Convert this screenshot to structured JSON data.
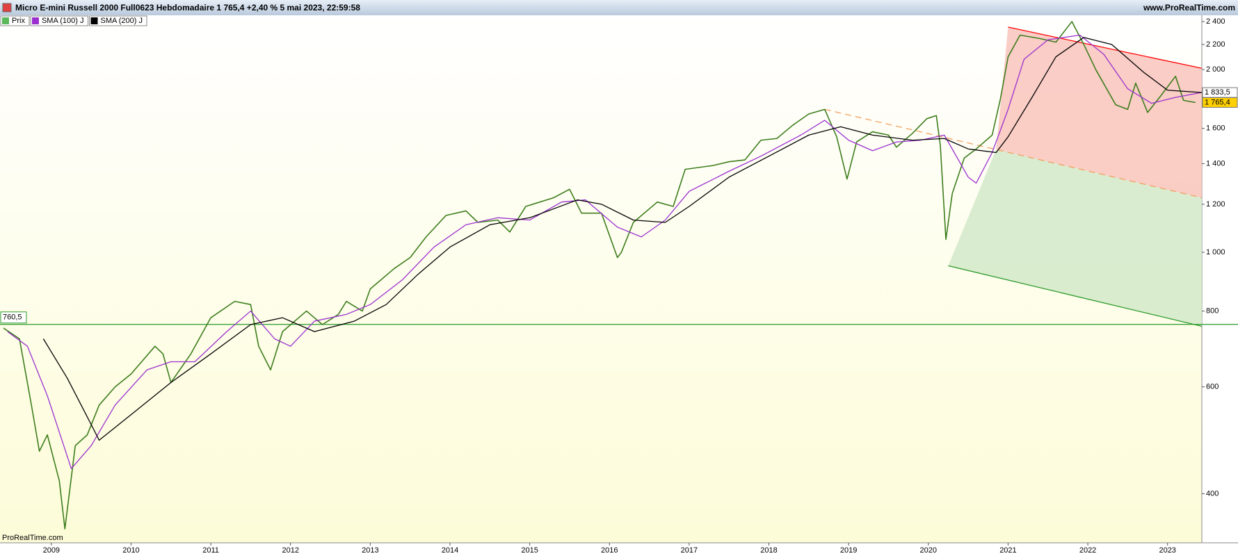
{
  "chart_data": {
    "type": "line",
    "title": "Micro E-mini Russell 2000 Full0623 Hebdomadaire 1 765,4 +2,40 % 5 mai 2023, 22:59:58",
    "source": "www.ProRealTime.com",
    "watermark": "ProRealTime.com",
    "log_scale": true,
    "grid": false,
    "legend": "top-left",
    "xlim": [
      2008.356,
      2023.43
    ],
    "xticks": [
      2009,
      2010,
      2011,
      2012,
      2013,
      2014,
      2015,
      2016,
      2017,
      2018,
      2019,
      2020,
      2021,
      2022,
      2023
    ],
    "ylim": [
      332,
      2458
    ],
    "yticks": [
      400,
      600,
      800,
      {
        "value": 1000,
        "label": "1 000"
      },
      {
        "value": 1200,
        "label": "1 200"
      },
      {
        "value": 1400,
        "label": "1 400"
      },
      {
        "value": 1600,
        "label": "1 600"
      },
      {
        "value": 2000,
        "label": "2 000"
      },
      {
        "value": 2200,
        "label": "2 200"
      },
      {
        "value": 2400,
        "label": "2 400"
      }
    ],
    "series": [
      {
        "name": "Prix",
        "color": "#3d7d1c",
        "legend_color": "#5cb85c",
        "x": [
          2008.4,
          2008.6,
          2008.75,
          2008.85,
          2008.95,
          2009.1,
          2009.17,
          2009.3,
          2009.45,
          2009.6,
          2009.8,
          2010.0,
          2010.3,
          2010.4,
          2010.5,
          2010.75,
          2011.0,
          2011.3,
          2011.5,
          2011.6,
          2011.75,
          2011.9,
          2012.2,
          2012.4,
          2012.6,
          2012.7,
          2012.9,
          2013.0,
          2013.3,
          2013.5,
          2013.7,
          2013.95,
          2014.2,
          2014.35,
          2014.6,
          2014.75,
          2014.95,
          2015.3,
          2015.5,
          2015.65,
          2015.9,
          2016.1,
          2016.15,
          2016.3,
          2016.6,
          2016.8,
          2016.95,
          2017.3,
          2017.5,
          2017.7,
          2017.9,
          2018.1,
          2018.3,
          2018.5,
          2018.7,
          2018.85,
          2018.98,
          2019.1,
          2019.3,
          2019.5,
          2019.6,
          2019.8,
          2019.98,
          2020.1,
          2020.15,
          2020.22,
          2020.3,
          2020.45,
          2020.6,
          2020.8,
          2020.9,
          2021.0,
          2021.15,
          2021.4,
          2021.6,
          2021.8,
          2021.95,
          2022.1,
          2022.35,
          2022.5,
          2022.6,
          2022.75,
          2022.9,
          2023.1,
          2023.2,
          2023.35
        ],
        "values": [
          750,
          720,
          560,
          470,
          500,
          420,
          350,
          480,
          500,
          560,
          600,
          630,
          700,
          680,
          610,
          680,
          780,
          830,
          820,
          700,
          640,
          740,
          800,
          760,
          790,
          830,
          800,
          870,
          940,
          980,
          1060,
          1150,
          1170,
          1120,
          1130,
          1080,
          1190,
          1230,
          1270,
          1160,
          1160,
          980,
          1000,
          1120,
          1210,
          1190,
          1370,
          1390,
          1410,
          1420,
          1530,
          1540,
          1620,
          1690,
          1720,
          1550,
          1320,
          1520,
          1580,
          1560,
          1490,
          1570,
          1660,
          1680,
          1500,
          1050,
          1250,
          1430,
          1480,
          1560,
          1780,
          2100,
          2280,
          2250,
          2220,
          2400,
          2200,
          2000,
          1750,
          1720,
          1900,
          1700,
          1800,
          1950,
          1780,
          1765.4
        ]
      },
      {
        "name": "SMA (100) J",
        "color": "#9b30d0",
        "x": [
          2008.45,
          2008.7,
          2008.95,
          2009.25,
          2009.5,
          2009.8,
          2010.2,
          2010.5,
          2010.8,
          2011.2,
          2011.5,
          2011.8,
          2012.0,
          2012.3,
          2012.7,
          2013.0,
          2013.4,
          2013.8,
          2014.2,
          2014.6,
          2015.0,
          2015.4,
          2015.7,
          2016.1,
          2016.4,
          2016.7,
          2017.0,
          2017.5,
          2017.9,
          2018.4,
          2018.7,
          2019.0,
          2019.3,
          2019.6,
          2019.9,
          2020.2,
          2020.5,
          2020.6,
          2020.8,
          2021.0,
          2021.2,
          2021.5,
          2021.9,
          2022.2,
          2022.5,
          2022.8,
          2023.1,
          2023.43
        ],
        "values": [
          740,
          700,
          580,
          440,
          480,
          560,
          640,
          660,
          660,
          740,
          800,
          720,
          700,
          770,
          790,
          820,
          900,
          1020,
          1110,
          1140,
          1130,
          1210,
          1220,
          1100,
          1060,
          1130,
          1260,
          1360,
          1440,
          1560,
          1650,
          1530,
          1470,
          1520,
          1530,
          1560,
          1330,
          1300,
          1460,
          1720,
          2080,
          2240,
          2280,
          2120,
          1860,
          1760,
          1800,
          1834
        ]
      },
      {
        "name": "SMA (200) J",
        "color": "#000000",
        "x": [
          2008.9,
          2009.2,
          2009.5,
          2009.6,
          2010.0,
          2010.5,
          2011.0,
          2011.5,
          2011.9,
          2012.3,
          2012.8,
          2013.2,
          2013.6,
          2014.0,
          2014.5,
          2015.0,
          2015.6,
          2015.9,
          2016.3,
          2016.7,
          2017.0,
          2017.5,
          2018.0,
          2018.5,
          2018.9,
          2019.3,
          2019.8,
          2020.2,
          2020.5,
          2020.85,
          2021.0,
          2021.3,
          2021.6,
          2021.95,
          2022.3,
          2022.7,
          2023.0,
          2023.43
        ],
        "values": [
          720,
          620,
          520,
          490,
          540,
          610,
          680,
          760,
          780,
          740,
          770,
          820,
          920,
          1020,
          1110,
          1140,
          1220,
          1200,
          1130,
          1120,
          1190,
          1330,
          1440,
          1560,
          1610,
          1560,
          1530,
          1540,
          1480,
          1460,
          1550,
          1800,
          2100,
          2260,
          2200,
          1980,
          1850,
          1833.5
        ]
      }
    ],
    "hline": {
      "value": 760.5,
      "label": "760,5",
      "color": "#2a9a2a"
    },
    "price_tags": [
      {
        "value": 1833.5,
        "label": "1 833,5",
        "color": "#ffffff"
      },
      {
        "value": 1765.4,
        "label": "1 765,4",
        "color": "#ffd000"
      }
    ],
    "drawings": [
      {
        "kind": "polygon",
        "color": "#f9c4bc",
        "points": [
          [
            2021.0,
            2350
          ],
          [
            2023.43,
            2010
          ],
          [
            2023.43,
            1230
          ],
          [
            2020.85,
            1478
          ]
        ]
      },
      {
        "kind": "polygon",
        "color": "#d4e9c9",
        "points": [
          [
            2020.25,
            950
          ],
          [
            2020.85,
            1478
          ],
          [
            2023.43,
            1230
          ],
          [
            2023.43,
            755
          ]
        ]
      },
      {
        "kind": "line",
        "color": "#ff0000",
        "points": [
          [
            2021.0,
            2350
          ],
          [
            2023.43,
            2010
          ]
        ]
      },
      {
        "kind": "dashed",
        "color": "#f0a060",
        "points": [
          [
            2018.7,
            1720
          ],
          [
            2023.43,
            1230
          ]
        ]
      },
      {
        "kind": "line",
        "color": "#2a9a2a",
        "points": [
          [
            2020.25,
            950
          ],
          [
            2023.43,
            755
          ]
        ]
      }
    ]
  }
}
